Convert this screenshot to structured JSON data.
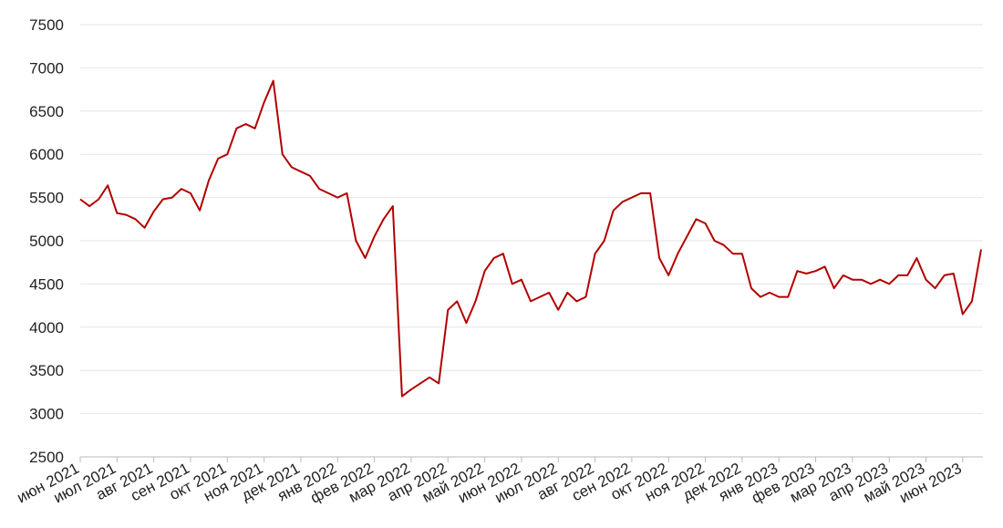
{
  "chart_data": {
    "type": "line",
    "categories": [
      "июн 2021",
      null,
      null,
      null,
      "июл 2021",
      null,
      null,
      null,
      "авг 2021",
      null,
      null,
      null,
      "сен 2021",
      null,
      null,
      null,
      "окт 2021",
      null,
      null,
      null,
      "ноя 2021",
      null,
      null,
      null,
      "дек 2021",
      null,
      null,
      null,
      "янв 2022",
      null,
      null,
      null,
      "фев 2022",
      null,
      null,
      null,
      "мар 2022",
      null,
      null,
      null,
      "апр 2022",
      null,
      null,
      null,
      "май 2022",
      null,
      null,
      null,
      "июн 2022",
      null,
      null,
      null,
      "июл 2022",
      null,
      null,
      null,
      "авг 2022",
      null,
      null,
      null,
      "сен 2022",
      null,
      null,
      null,
      "окт 2022",
      null,
      null,
      null,
      "ноя 2022",
      null,
      null,
      null,
      "дек 2022",
      null,
      null,
      null,
      "янв 2023",
      null,
      null,
      null,
      "фев 2023",
      null,
      null,
      null,
      "мар 2023",
      null,
      null,
      null,
      "апр 2023",
      null,
      null,
      null,
      "май 2023",
      null,
      null,
      null,
      "июн 2023",
      null,
      null
    ],
    "series": [
      {
        "color": "#b30000",
        "values": [
          5480,
          5400,
          5480,
          5640,
          5320,
          5300,
          5250,
          5150,
          5340,
          5480,
          5500,
          5600,
          5550,
          5350,
          5700,
          5950,
          6000,
          6300,
          6350,
          6300,
          6600,
          6850,
          6000,
          5850,
          5800,
          5750,
          5600,
          5550,
          5500,
          5550,
          5000,
          4800,
          5050,
          5250,
          5400,
          3200,
          3280,
          3350,
          3420,
          3350,
          4200,
          4300,
          4050,
          4300,
          4650,
          4800,
          4850,
          4500,
          4550,
          4300,
          4350,
          4400,
          4200,
          4400,
          4300,
          4350,
          4850,
          5000,
          5350,
          5450,
          5500,
          5550,
          5550,
          4800,
          4600,
          4850,
          5050,
          5250,
          5200,
          5000,
          4950,
          4850,
          4850,
          4450,
          4350,
          4400,
          4350,
          4350,
          4650,
          4620,
          4650,
          4700,
          4450,
          4600,
          4550,
          4550,
          4500,
          4550,
          4500,
          4600,
          4600,
          4800,
          4550,
          4450,
          4600,
          4620,
          4150,
          4300,
          4900
        ]
      }
    ],
    "ylim": [
      2500,
      7500
    ],
    "yticks": [
      2500,
      3000,
      3500,
      4000,
      4500,
      5000,
      5500,
      6000,
      6500,
      7000,
      7500
    ],
    "grid": true
  }
}
